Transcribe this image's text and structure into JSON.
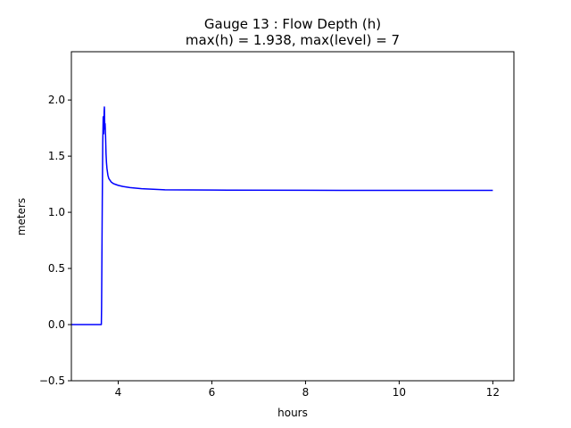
{
  "chart_data": {
    "type": "line",
    "title_line1": "Gauge 13 : Flow Depth (h)",
    "title_line2": "max(h) =   1.938,    max(level) = 7",
    "xlabel": "hours",
    "ylabel": "meters",
    "xlim": [
      3.0,
      12.45
    ],
    "ylim": [
      -0.5,
      2.43
    ],
    "x_ticks": [
      4,
      6,
      8,
      10,
      12
    ],
    "y_ticks": [
      -0.5,
      0.0,
      0.5,
      1.0,
      1.5,
      2.0
    ],
    "x_tick_labels": [
      "4",
      "6",
      "8",
      "10",
      "12"
    ],
    "y_tick_labels": [
      "−0.5",
      "0.0",
      "0.5",
      "1.0",
      "1.5",
      "2.0"
    ],
    "grid": false,
    "series": [
      {
        "color": "#0000ff",
        "x": [
          3.0,
          3.64,
          3.645,
          3.66,
          3.67,
          3.68,
          3.69,
          3.7,
          3.705,
          3.71,
          3.715,
          3.72,
          3.73,
          3.74,
          3.75,
          3.76,
          3.78,
          3.8,
          3.85,
          3.9,
          4.0,
          4.1,
          4.25,
          4.5,
          5.0,
          6.0,
          8.0,
          10.0,
          12.0
        ],
        "y": [
          0.0,
          0.0,
          0.15,
          1.1,
          1.62,
          1.85,
          1.7,
          1.9,
          1.938,
          1.82,
          1.74,
          1.79,
          1.68,
          1.52,
          1.44,
          1.39,
          1.33,
          1.3,
          1.27,
          1.255,
          1.24,
          1.23,
          1.22,
          1.21,
          1.2,
          1.198,
          1.196,
          1.195,
          1.195
        ]
      }
    ]
  }
}
